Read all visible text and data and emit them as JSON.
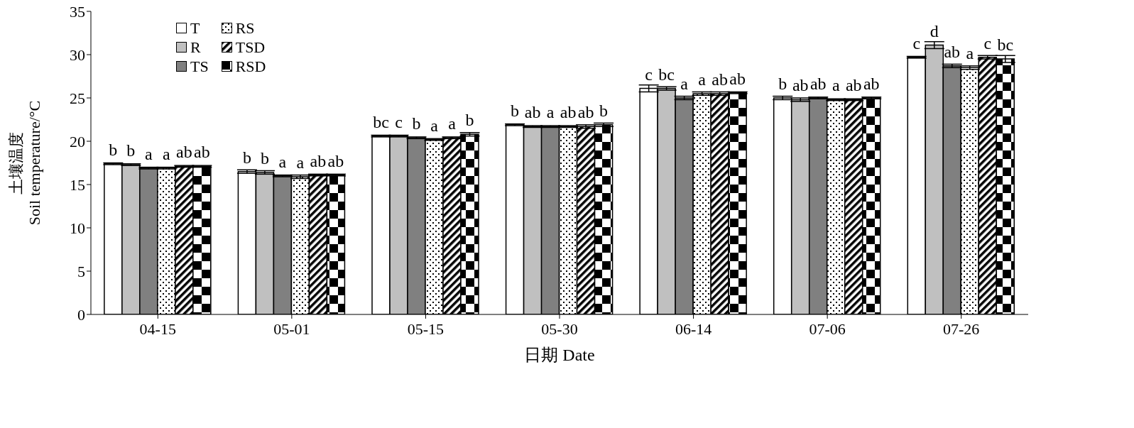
{
  "chart_data": {
    "type": "bar",
    "xlabel": "日期 Date",
    "ylabel": "土壤温度\nSoil temperature/°C",
    "categories": [
      "04-15",
      "05-01",
      "05-15",
      "05-30",
      "06-14",
      "07-06",
      "07-26"
    ],
    "ylim": [
      0,
      35
    ],
    "yticks": [
      0,
      5,
      10,
      15,
      20,
      25,
      30,
      35
    ],
    "grid": false,
    "legend": "top left",
    "series": [
      {
        "name": "T",
        "color": "#ffffff",
        "values": [
          17.4,
          16.5,
          20.6,
          21.9,
          26.1,
          25.0,
          29.7
        ],
        "errors": [
          0.1,
          0.2,
          0.1,
          0.1,
          0.4,
          0.2,
          0.1
        ],
        "value_labels": [
          "b",
          "b",
          "bc",
          "b",
          "c",
          "b",
          "c"
        ]
      },
      {
        "name": "R",
        "color": "#c0c0c0",
        "values": [
          17.3,
          16.4,
          20.6,
          21.7,
          26.1,
          24.8,
          31.1
        ],
        "errors": [
          0.1,
          0.2,
          0.1,
          0.1,
          0.2,
          0.2,
          0.4
        ],
        "value_labels": [
          "b",
          "b",
          "c",
          "ab",
          "bc",
          "ab",
          "d"
        ]
      },
      {
        "name": "TS",
        "color": "#808080",
        "values": [
          16.9,
          16.0,
          20.4,
          21.7,
          25.0,
          25.0,
          28.7
        ],
        "errors": [
          0.1,
          0.1,
          0.1,
          0.1,
          0.2,
          0.1,
          0.2
        ],
        "value_labels": [
          "a",
          "a",
          "b",
          "a",
          "a",
          "ab",
          "ab"
        ]
      },
      {
        "name": "RS",
        "color": "#000000",
        "values": [
          16.9,
          15.9,
          20.2,
          21.7,
          25.5,
          24.8,
          28.5
        ],
        "errors": [
          0.1,
          0.2,
          0.1,
          0.1,
          0.2,
          0.1,
          0.2
        ],
        "value_labels": [
          "a",
          "a",
          "a",
          "ab",
          "a",
          "a",
          "a"
        ]
      },
      {
        "name": "TSD",
        "color": "#000000",
        "values": [
          17.1,
          16.1,
          20.4,
          21.7,
          25.5,
          24.8,
          29.7
        ],
        "errors": [
          0.1,
          0.1,
          0.1,
          0.2,
          0.2,
          0.1,
          0.2
        ],
        "value_labels": [
          "ab",
          "ab",
          "a",
          "ab",
          "ab",
          "ab",
          "c"
        ]
      },
      {
        "name": "RSD",
        "color": "#000000",
        "values": [
          17.1,
          16.1,
          20.8,
          21.9,
          25.6,
          25.0,
          29.5
        ],
        "errors": [
          0.1,
          0.1,
          0.2,
          0.2,
          0.1,
          0.1,
          0.4
        ],
        "value_labels": [
          "ab",
          "ab",
          "b",
          "b",
          "ab",
          "ab",
          "bc"
        ]
      }
    ]
  }
}
